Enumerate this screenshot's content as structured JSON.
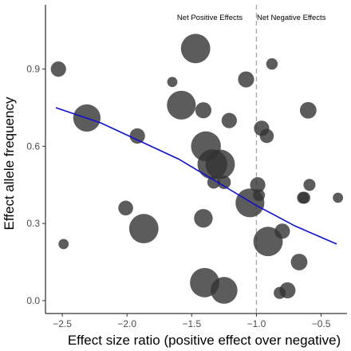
{
  "chart_data": {
    "type": "scatter",
    "xlabel": "Effect size ratio (positive effect over negative)",
    "ylabel": "Effect allele frequency",
    "xlim": [
      -2.63,
      -0.3
    ],
    "ylim": [
      -0.05,
      1.15
    ],
    "x_ticks": [
      -2.5,
      -2.0,
      -1.5,
      -1.0,
      -0.5
    ],
    "x_tick_labels": [
      "−2.5",
      "−2.0",
      "−1.5",
      "−1.0",
      "−0.5"
    ],
    "y_ticks": [
      0.0,
      0.3,
      0.6,
      0.9
    ],
    "y_tick_labels": [
      "0.0",
      "0.3",
      "0.6",
      "0.9"
    ],
    "grid": false,
    "point_color": "#333333",
    "trend_color": "#1010cc",
    "reference_line": {
      "x": -1.0,
      "color": "#a6a6a6",
      "style": "dashed"
    },
    "annotations": [
      {
        "text": "Net Positive Effects",
        "x": -1.36,
        "y": 1.1
      },
      {
        "text": "Net Negative Effects",
        "x": -0.73,
        "y": 1.1
      }
    ],
    "points": [
      {
        "x": -2.53,
        "y": 0.9,
        "size": 0.35
      },
      {
        "x": -2.49,
        "y": 0.22,
        "size": 0.15
      },
      {
        "x": -2.31,
        "y": 0.71,
        "size": 0.82
      },
      {
        "x": -2.01,
        "y": 0.36,
        "size": 0.33
      },
      {
        "x": -1.92,
        "y": 0.64,
        "size": 0.35
      },
      {
        "x": -1.87,
        "y": 0.28,
        "size": 0.9
      },
      {
        "x": -1.65,
        "y": 0.85,
        "size": 0.15
      },
      {
        "x": -1.58,
        "y": 0.76,
        "size": 0.88
      },
      {
        "x": -1.47,
        "y": 0.98,
        "size": 0.9
      },
      {
        "x": -1.41,
        "y": 0.74,
        "size": 0.38
      },
      {
        "x": -1.41,
        "y": 0.32,
        "size": 0.48
      },
      {
        "x": -1.4,
        "y": 0.07,
        "size": 0.9
      },
      {
        "x": -1.39,
        "y": 0.6,
        "size": 0.92
      },
      {
        "x": -1.34,
        "y": 0.53,
        "size": 0.92
      },
      {
        "x": -1.33,
        "y": 0.46,
        "size": 0.25
      },
      {
        "x": -1.28,
        "y": 0.53,
        "size": 0.9
      },
      {
        "x": -1.25,
        "y": 0.04,
        "size": 0.8
      },
      {
        "x": -1.25,
        "y": 0.46,
        "size": 0.28
      },
      {
        "x": -1.21,
        "y": 0.7,
        "size": 0.35
      },
      {
        "x": -1.08,
        "y": 0.86,
        "size": 0.38
      },
      {
        "x": -1.05,
        "y": 0.38,
        "size": 0.88
      },
      {
        "x": -0.99,
        "y": 0.45,
        "size": 0.35
      },
      {
        "x": -0.98,
        "y": 0.41,
        "size": 0.22
      },
      {
        "x": -0.96,
        "y": 0.67,
        "size": 0.35
      },
      {
        "x": -0.92,
        "y": 0.64,
        "size": 0.3
      },
      {
        "x": -0.91,
        "y": 0.23,
        "size": 0.9
      },
      {
        "x": -0.88,
        "y": 0.92,
        "size": 0.2
      },
      {
        "x": -0.82,
        "y": 0.03,
        "size": 0.22
      },
      {
        "x": -0.8,
        "y": 0.27,
        "size": 0.35
      },
      {
        "x": -0.76,
        "y": 0.04,
        "size": 0.38
      },
      {
        "x": -0.67,
        "y": 0.15,
        "size": 0.4
      },
      {
        "x": -0.64,
        "y": 0.4,
        "size": 0.22
      },
      {
        "x": -0.63,
        "y": 0.4,
        "size": 0.22
      },
      {
        "x": -0.6,
        "y": 0.74,
        "size": 0.4
      },
      {
        "x": -0.59,
        "y": 0.45,
        "size": 0.22
      },
      {
        "x": -0.37,
        "y": 0.4,
        "size": 0.15
      }
    ],
    "trend_line": {
      "x": [
        -2.55,
        -2.2,
        -1.9,
        -1.6,
        -1.3,
        -1.0,
        -0.7,
        -0.38
      ],
      "y": [
        0.75,
        0.69,
        0.62,
        0.55,
        0.46,
        0.37,
        0.29,
        0.22
      ]
    }
  }
}
